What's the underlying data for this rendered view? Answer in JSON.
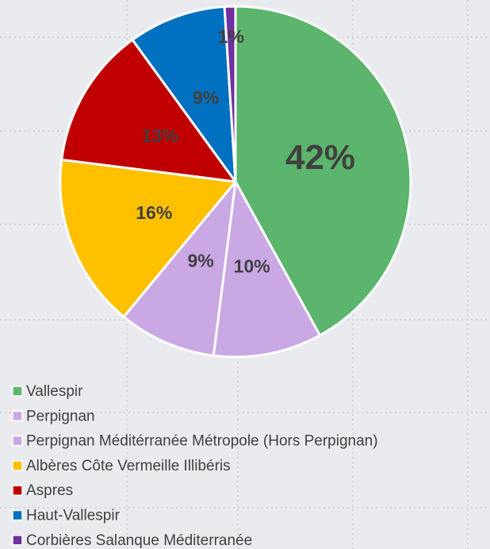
{
  "chart_data": {
    "type": "pie",
    "categories": [
      "Vallespir",
      "Perpignan",
      "Perpignan Méditérranée Métropole (Hors Perpignan)",
      "Albères Côte Vermeille Illibéris",
      "Aspres",
      "Haut-Vallespir",
      "Corbières Salanque Méditerranée"
    ],
    "values": [
      42,
      10,
      9,
      16,
      13,
      9,
      1
    ],
    "value_labels": [
      "42%",
      "10%",
      "9%",
      "16%",
      "13%",
      "9%",
      "1%"
    ],
    "colors": [
      "#5cb56c",
      "#c9a8e4",
      "#c9a8e4",
      "#ffc000",
      "#c00000",
      "#0070c0",
      "#7030a0"
    ],
    "legend": "bottom"
  }
}
